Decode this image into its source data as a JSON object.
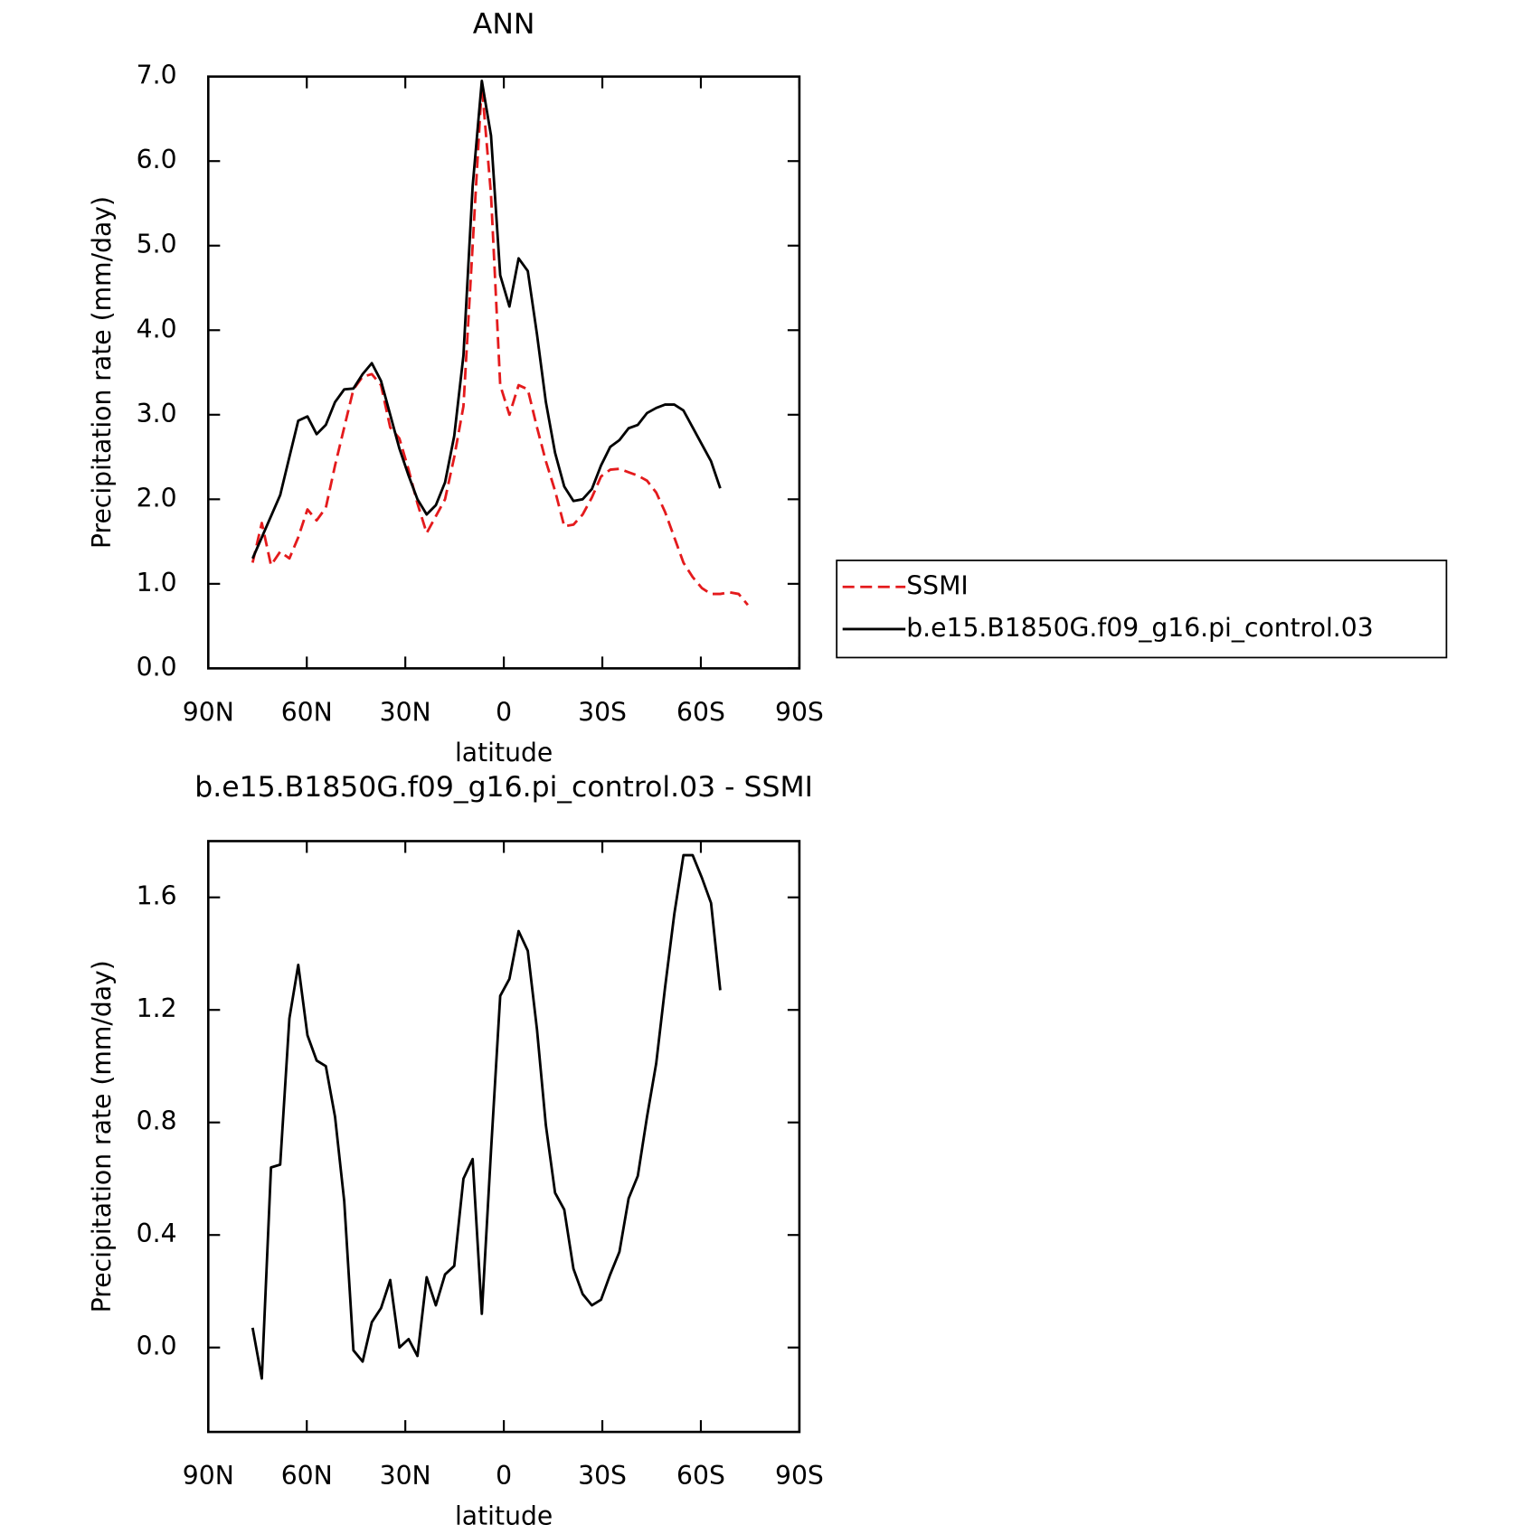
{
  "chart_data": [
    {
      "type": "line",
      "title": "ANN",
      "xlabel": "latitude",
      "ylabel": "Precipitation rate (mm/day)",
      "x": [
        76.5,
        73.7,
        70.9,
        68.1,
        65.3,
        62.6,
        59.8,
        57.0,
        54.2,
        51.4,
        48.6,
        45.8,
        43.0,
        40.2,
        37.4,
        34.6,
        31.8,
        29.0,
        26.3,
        23.5,
        20.7,
        17.9,
        15.1,
        12.3,
        9.5,
        6.7,
        3.9,
        1.1,
        -1.7,
        -4.5,
        -7.3,
        -10.1,
        -12.8,
        -15.6,
        -18.4,
        -21.2,
        -24.0,
        -26.8,
        -29.6,
        -32.4,
        -35.2,
        -38.0,
        -40.8,
        -43.6,
        -46.4,
        -49.1,
        -51.9,
        -54.7,
        -57.5,
        -60.3,
        -63.1,
        -65.9,
        -68.7,
        -71.5,
        -74.3
      ],
      "series": [
        {
          "name": "SSMI",
          "color": "#e41a1c",
          "linestyle": "dashed",
          "values": [
            1.25,
            1.72,
            1.22,
            1.38,
            1.3,
            1.55,
            1.88,
            1.75,
            1.9,
            2.4,
            2.85,
            3.3,
            3.45,
            3.48,
            3.35,
            2.85,
            2.72,
            2.35,
            1.95,
            1.6,
            1.8,
            2.0,
            2.5,
            3.1,
            5.0,
            6.9,
            5.6,
            3.35,
            3.0,
            3.35,
            3.3,
            2.85,
            2.45,
            2.1,
            1.68,
            1.7,
            1.82,
            2.02,
            2.27,
            2.35,
            2.36,
            2.32,
            2.28,
            2.22,
            2.08,
            1.85,
            1.55,
            1.25,
            1.08,
            0.95,
            0.88,
            0.88,
            0.9,
            0.88,
            0.75
          ]
        },
        {
          "name": "b.e15.B1850G.f09_g16.pi_control.03",
          "color": "#000000",
          "linestyle": "solid",
          "values": [
            1.3,
            1.55,
            1.8,
            2.05,
            2.5,
            2.93,
            2.98,
            2.77,
            2.88,
            3.15,
            3.3,
            3.31,
            3.48,
            3.61,
            3.4,
            3.0,
            2.6,
            2.28,
            2.0,
            1.82,
            1.93,
            2.2,
            2.75,
            3.7,
            5.7,
            6.95,
            6.3,
            4.65,
            4.28,
            4.85,
            4.7,
            3.95,
            3.15,
            2.55,
            2.15,
            1.98,
            2.0,
            2.12,
            2.4,
            2.62,
            2.7,
            2.84,
            2.88,
            3.02,
            3.08,
            3.12,
            3.12,
            3.05,
            2.85,
            2.65,
            2.45,
            2.13,
            null,
            null,
            null
          ]
        }
      ],
      "xlim": [
        90,
        -90
      ],
      "xticks": [
        {
          "value": 90,
          "label": "90N"
        },
        {
          "value": 60,
          "label": "60N"
        },
        {
          "value": 30,
          "label": "30N"
        },
        0,
        {
          "value": -30,
          "label": "30S"
        },
        {
          "value": -60,
          "label": "60S"
        },
        {
          "value": -90,
          "label": "90S"
        }
      ],
      "ylim": [
        0,
        7
      ],
      "yticks": [
        {
          "value": 0,
          "label": "0.0"
        },
        {
          "value": 1,
          "label": "1.0"
        },
        {
          "value": 2,
          "label": "2.0"
        },
        {
          "value": 3,
          "label": "3.0"
        },
        {
          "value": 4,
          "label": "4.0"
        },
        {
          "value": 5,
          "label": "5.0"
        },
        {
          "value": 6,
          "label": "6.0"
        },
        {
          "value": 7,
          "label": "7.0"
        }
      ],
      "legend": "outside right"
    },
    {
      "type": "line",
      "title": "b.e15.B1850G.f09_g16.pi_control.03 - SSMI",
      "xlabel": "latitude",
      "ylabel": "Precipitation rate (mm/day)",
      "x": [
        76.5,
        73.7,
        70.9,
        68.1,
        65.3,
        62.6,
        59.8,
        57.0,
        54.2,
        51.4,
        48.6,
        45.8,
        43.0,
        40.2,
        37.4,
        34.6,
        31.8,
        29.0,
        26.3,
        23.5,
        20.7,
        17.9,
        15.1,
        12.3,
        9.5,
        6.7,
        3.9,
        1.1,
        -1.7,
        -4.5,
        -7.3,
        -10.1,
        -12.8,
        -15.6,
        -18.4,
        -21.2,
        -24.0,
        -26.8,
        -29.6,
        -32.4,
        -35.2,
        -38.0,
        -40.8,
        -43.6,
        -46.4,
        -49.1,
        -51.9,
        -54.7,
        -57.5,
        -60.3,
        -63.1,
        -65.9
      ],
      "values": [
        0.07,
        -0.11,
        0.64,
        0.65,
        1.17,
        1.36,
        1.11,
        1.02,
        1.0,
        0.82,
        0.52,
        -0.01,
        -0.05,
        0.09,
        0.14,
        0.24,
        0.0,
        0.03,
        -0.03,
        0.25,
        0.15,
        0.26,
        0.29,
        0.6,
        0.67,
        0.12,
        0.7,
        1.25,
        1.31,
        1.48,
        1.41,
        1.13,
        0.79,
        0.55,
        0.49,
        0.28,
        0.19,
        0.15,
        0.17,
        0.26,
        0.34,
        0.53,
        0.61,
        0.82,
        1.01,
        1.28,
        1.54,
        1.75,
        1.75,
        1.67,
        1.58,
        1.27
      ],
      "color": "#000000",
      "xlim": [
        90,
        -90
      ],
      "xticks": [
        {
          "value": 90,
          "label": "90N"
        },
        {
          "value": 60,
          "label": "60N"
        },
        {
          "value": 30,
          "label": "30N"
        },
        0,
        {
          "value": -30,
          "label": "30S"
        },
        {
          "value": -60,
          "label": "60S"
        },
        {
          "value": -90,
          "label": "90S"
        }
      ],
      "ylim": [
        -0.3,
        1.8
      ],
      "yticks": [
        {
          "value": 0,
          "label": "0.0"
        },
        {
          "value": 0.4,
          "label": "0.4"
        },
        {
          "value": 0.8,
          "label": "0.8"
        },
        {
          "value": 1.2,
          "label": "1.2"
        },
        {
          "value": 1.6,
          "label": "1.6"
        }
      ]
    }
  ]
}
